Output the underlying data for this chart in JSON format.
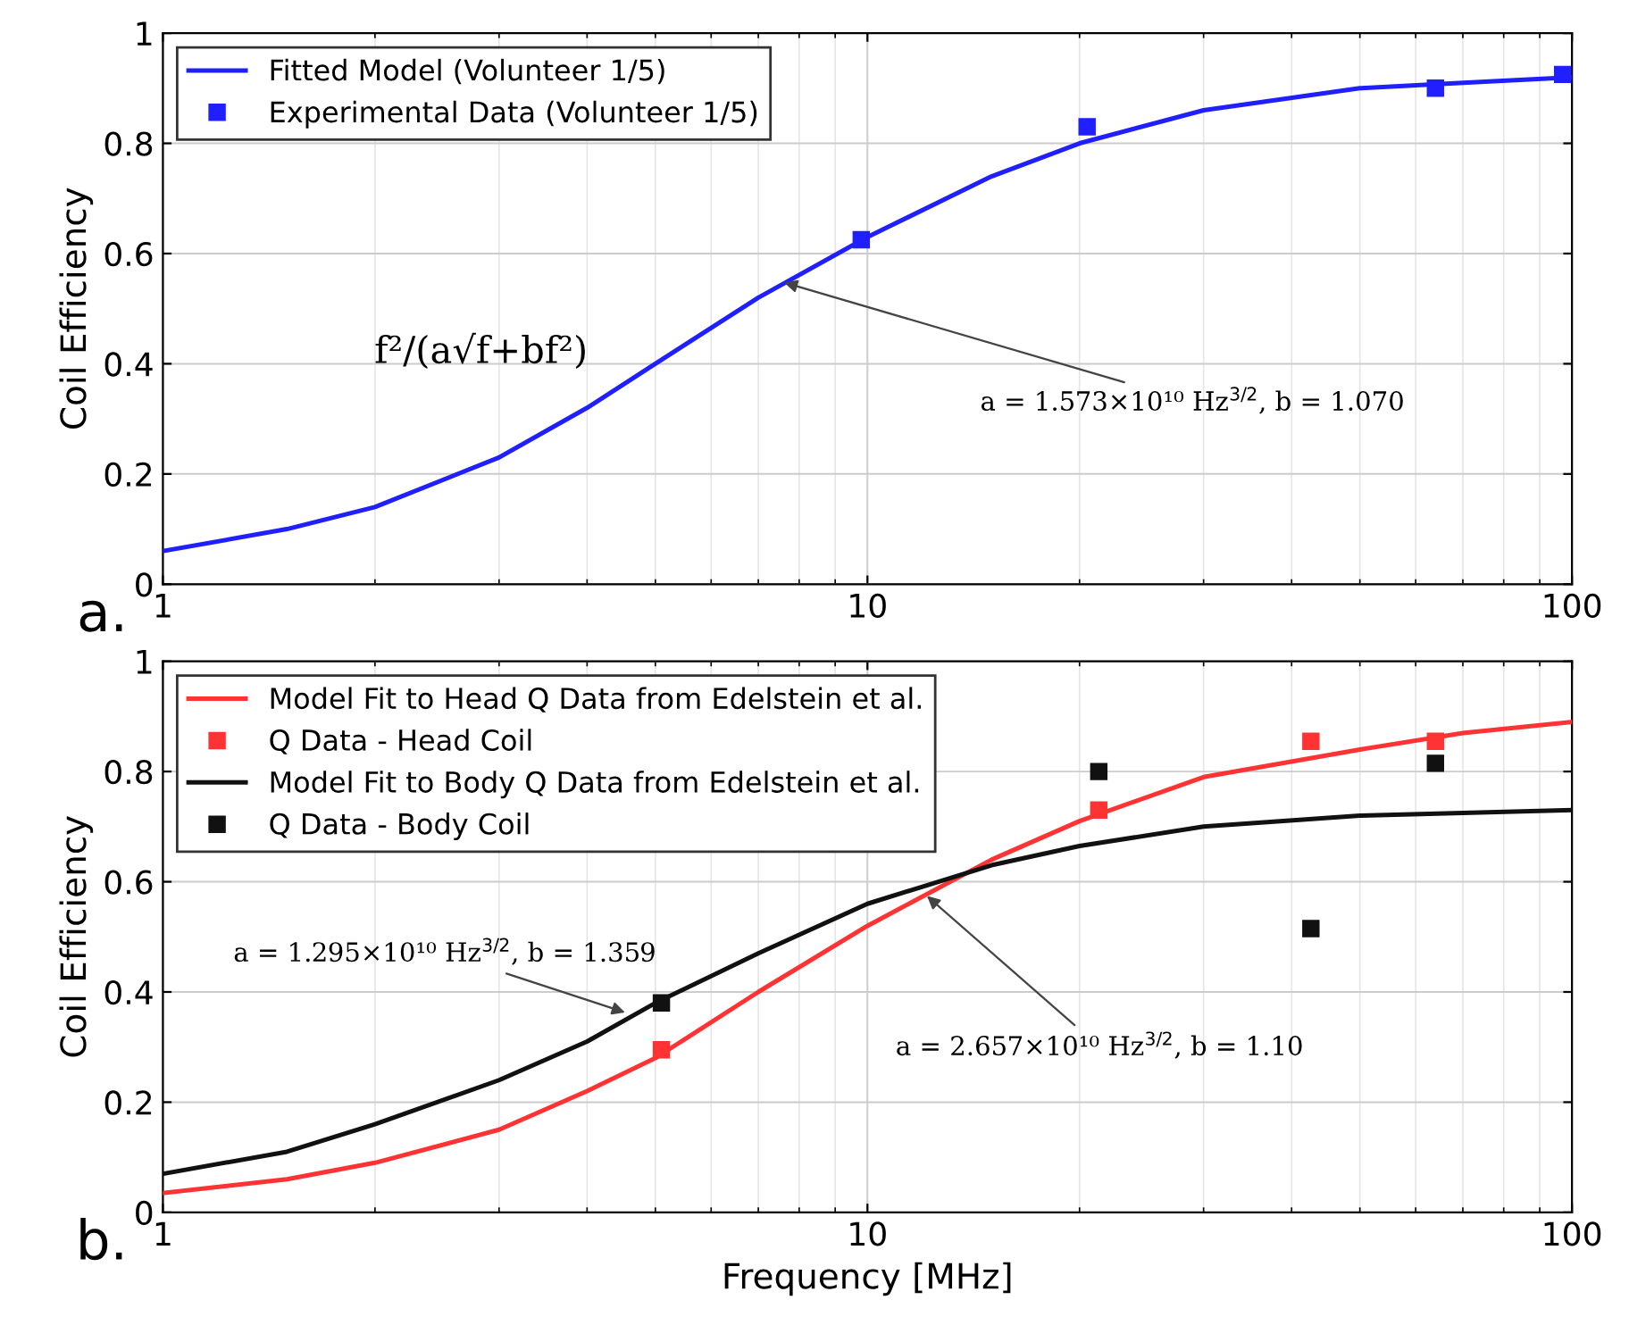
{
  "chart_data": [
    {
      "type": "line",
      "ylabel": "Coil Efficiency",
      "log": "x",
      "xlim": [
        1,
        100
      ],
      "xticks": [
        1,
        10,
        100
      ],
      "ylim": [
        0,
        1
      ],
      "yticks": [
        0,
        {
          "value": 0.2,
          "label": "0.2"
        },
        {
          "value": 0.4,
          "label": "0.4"
        },
        {
          "value": 0.6,
          "label": "0.6"
        },
        {
          "value": 0.8,
          "label": "0.8"
        },
        1
      ],
      "grid": true,
      "legend": "top left",
      "series": [
        {
          "name": "Fitted Model (Volunteer 1/5)",
          "color": "#1f1fff",
          "marker": "none",
          "line_style": "solid",
          "x": [
            1,
            1.5,
            2,
            3,
            4,
            5,
            7,
            10,
            15,
            20,
            30,
            50,
            70,
            100
          ],
          "values": [
            0.06,
            0.1,
            0.14,
            0.23,
            0.32,
            0.4,
            0.52,
            0.63,
            0.74,
            0.8,
            0.86,
            0.9,
            0.91,
            0.92
          ]
        },
        {
          "name": "Experimental Data (Volunteer 1/5)",
          "type": "scatter",
          "color": "#1f1fff",
          "marker": "square",
          "x": [
            9.8,
            20.5,
            64,
            97
          ],
          "values": [
            0.625,
            0.83,
            0.9,
            0.925
          ]
        }
      ],
      "annotations": [
        "a.",
        "f²/(a√f+bf²)",
        {
          "text": "a = 1.573×10¹⁰ Hz$^{3/2}$, b = 1.070",
          "x": 7.5,
          "y": 0.55
        }
      ]
    },
    {
      "type": "line",
      "xlabel": "Frequency [MHz]",
      "ylabel": "Coil Efficiency",
      "log": "x",
      "xlim": [
        1,
        100
      ],
      "xticks": [
        1,
        10,
        100
      ],
      "ylim": [
        0,
        1
      ],
      "yticks": [
        0,
        {
          "value": 0.2,
          "label": "0.2"
        },
        {
          "value": 0.4,
          "label": "0.4"
        },
        {
          "value": 0.6,
          "label": "0.6"
        },
        {
          "value": 0.8,
          "label": "0.8"
        },
        1
      ],
      "grid": true,
      "legend": "top left",
      "series": [
        {
          "name": "Model Fit to Head Q Data from Edelstein et al.",
          "color": "#ff3333",
          "marker": "none",
          "line_style": "solid",
          "x": [
            1,
            1.5,
            2,
            3,
            4,
            5,
            7,
            10,
            15,
            20,
            30,
            50,
            70,
            100
          ],
          "values": [
            0.035,
            0.06,
            0.09,
            0.15,
            0.22,
            0.28,
            0.4,
            0.52,
            0.64,
            0.71,
            0.79,
            0.84,
            0.87,
            0.89
          ]
        },
        {
          "name": "Q Data - Head Coil",
          "type": "scatter",
          "color": "#ff3333",
          "marker": "square",
          "x": [
            5.1,
            21.3,
            42.6,
            64
          ],
          "values": [
            0.295,
            0.73,
            0.855,
            0.855
          ]
        },
        {
          "name": "Model Fit to Body Q Data from Edelstein et al.",
          "color": "#111111",
          "marker": "none",
          "line_style": "solid",
          "x": [
            1,
            1.5,
            2,
            3,
            4,
            5,
            7,
            10,
            15,
            20,
            30,
            50,
            70,
            100
          ],
          "values": [
            0.07,
            0.11,
            0.16,
            0.24,
            0.31,
            0.38,
            0.47,
            0.56,
            0.63,
            0.665,
            0.7,
            0.72,
            0.725,
            0.73
          ]
        },
        {
          "name": "Q Data - Body Coil",
          "type": "scatter",
          "color": "#111111",
          "marker": "square",
          "x": [
            5.1,
            21.3,
            42.6,
            64
          ],
          "values": [
            0.38,
            0.8,
            0.515,
            0.815
          ]
        }
      ],
      "annotations": [
        "b.",
        {
          "text": "a = 1.295×10¹⁰ Hz$^{3/2}$, b = 1.359",
          "x": 4.6,
          "y": 0.36
        },
        {
          "text": "a = 2.657×10¹⁰ Hz$^{3/2}$, b = 1.10",
          "x": 12,
          "y": 0.58
        }
      ]
    }
  ]
}
